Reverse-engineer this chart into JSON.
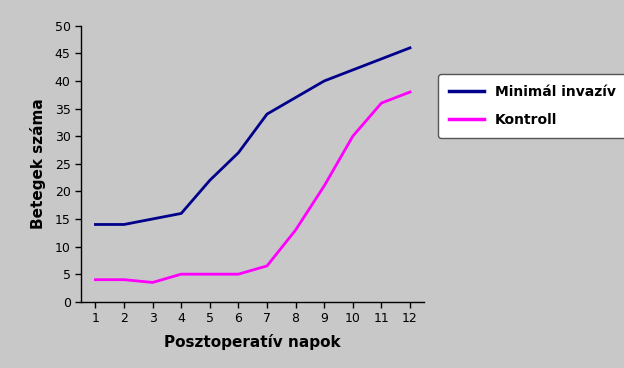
{
  "x": [
    1,
    2,
    3,
    4,
    5,
    6,
    7,
    8,
    9,
    10,
    11,
    12
  ],
  "minimal_invasiv": [
    14,
    14,
    15,
    16,
    22,
    27,
    34,
    37,
    40,
    42,
    44,
    46
  ],
  "kontroll": [
    4,
    4,
    3.5,
    5,
    5,
    5,
    6.5,
    13,
    21,
    30,
    36,
    38
  ],
  "line_color_blue": "#00008B",
  "line_color_pink": "#FF00FF",
  "bg_color": "#C8C8C8",
  "plot_bg_color": "#C8C8C8",
  "legend_bg_color": "#FFFFFF",
  "xlabel": "Posztoperatív napok",
  "ylabel": "Betegek száma",
  "legend_label_blue": "Minimál invazív",
  "legend_label_pink": "Kontroll",
  "xlim": [
    0.5,
    12.5
  ],
  "ylim": [
    0,
    50
  ],
  "yticks": [
    0,
    5,
    10,
    15,
    20,
    25,
    30,
    35,
    40,
    45,
    50
  ],
  "xticks": [
    1,
    2,
    3,
    4,
    5,
    6,
    7,
    8,
    9,
    10,
    11,
    12
  ],
  "figsize": [
    6.24,
    3.68
  ],
  "dpi": 100
}
